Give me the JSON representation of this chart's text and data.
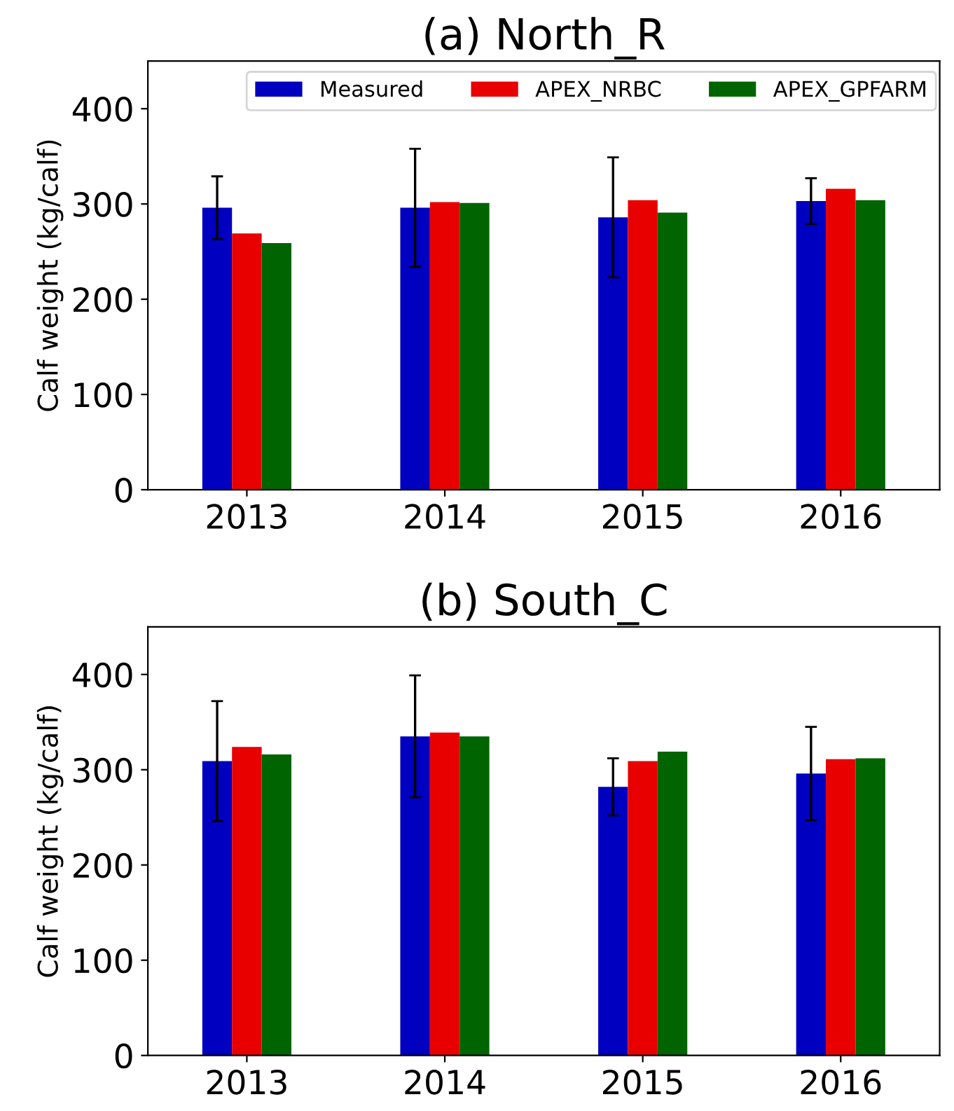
{
  "chart_data": [
    {
      "type": "bar",
      "title": "(a) North_R",
      "ylabel": "Calf weight (kg/calf)",
      "categories": [
        "2013",
        "2014",
        "2015",
        "2016"
      ],
      "ylim": [
        0,
        450
      ],
      "yticks": [
        0,
        100,
        200,
        300,
        400
      ],
      "grid": false,
      "legend": "top",
      "series": [
        {
          "name": "Measured",
          "color": "#0000c0",
          "values": [
            296,
            296,
            286,
            303
          ],
          "errors": [
            33,
            62,
            63,
            24
          ]
        },
        {
          "name": "APEX_NRBC",
          "color": "#e80000",
          "values": [
            269,
            302,
            304,
            316
          ]
        },
        {
          "name": "APEX_GPFARM",
          "color": "#006400",
          "values": [
            259,
            301,
            291,
            304
          ]
        }
      ]
    },
    {
      "type": "bar",
      "title": "(b) South_C",
      "ylabel": "Calf weight (kg/calf)",
      "categories": [
        "2013",
        "2014",
        "2015",
        "2016"
      ],
      "ylim": [
        0,
        450
      ],
      "yticks": [
        0,
        100,
        200,
        300,
        400
      ],
      "grid": false,
      "legend": false,
      "series": [
        {
          "color": "#0000c0",
          "values": [
            309,
            335,
            282,
            296
          ],
          "errors": [
            63,
            64,
            30,
            49
          ]
        },
        {
          "color": "#e80000",
          "values": [
            324,
            339,
            309,
            311
          ]
        },
        {
          "color": "#006400",
          "values": [
            316,
            335,
            319,
            312
          ]
        }
      ]
    }
  ]
}
